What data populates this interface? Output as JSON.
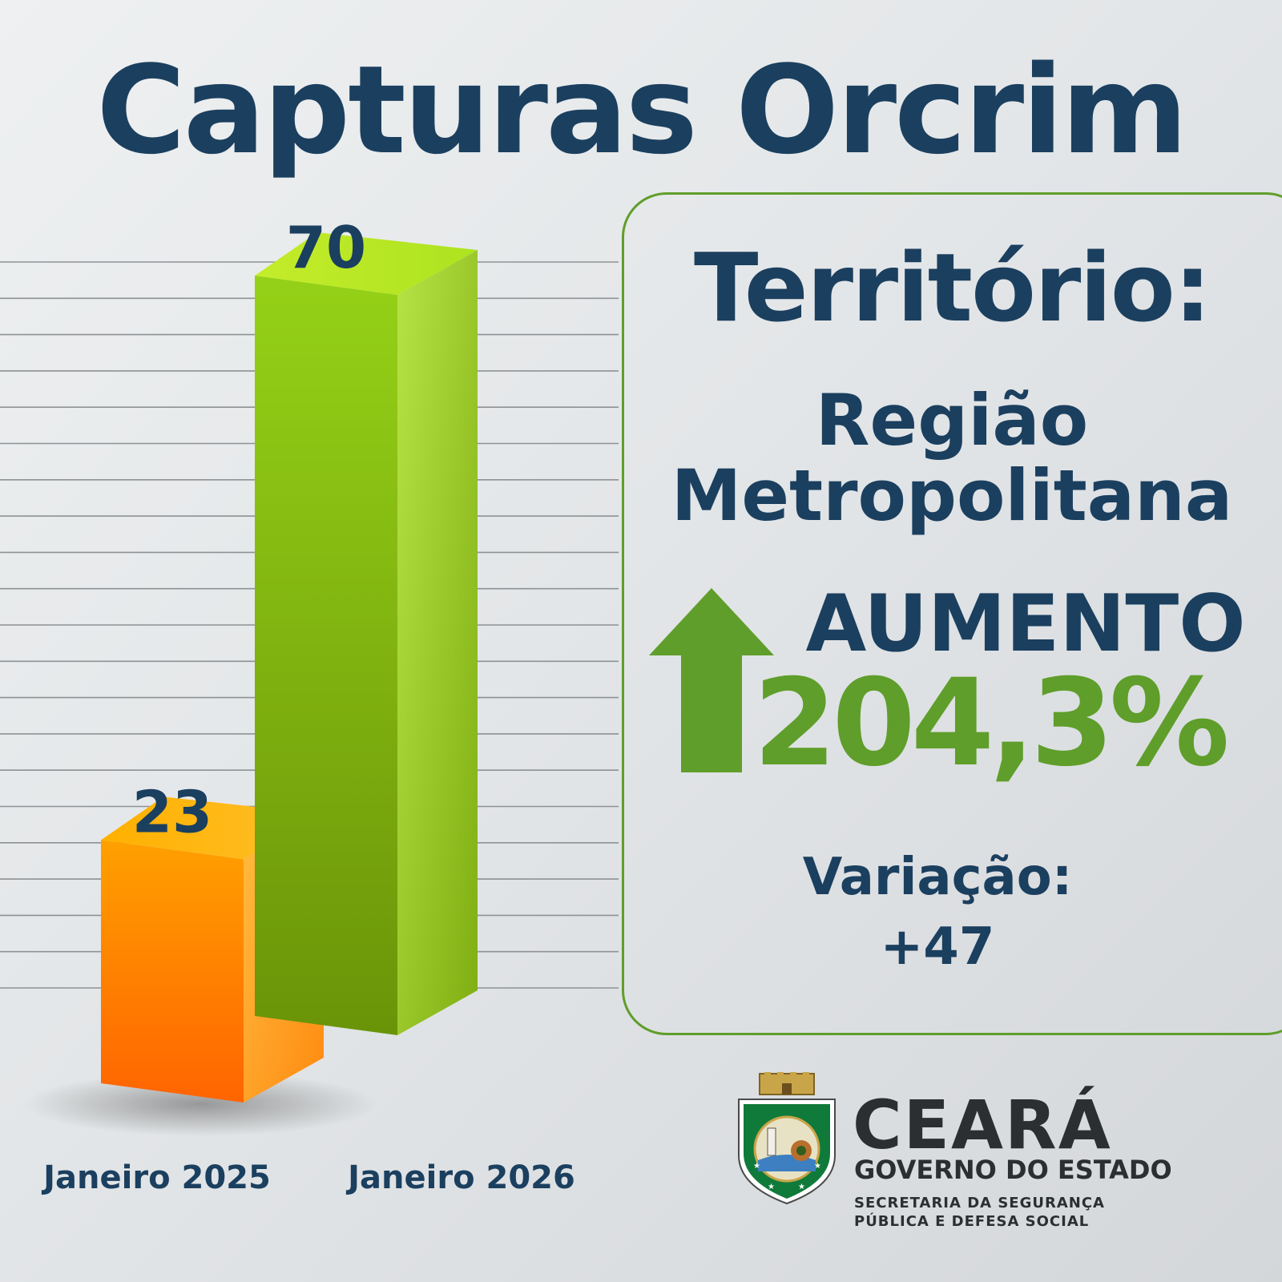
{
  "chart_data": {
    "type": "bar",
    "title": "Capturas Orcrim",
    "categories": [
      "Janeiro 2025",
      "Janeiro 2026"
    ],
    "values": [
      23,
      70
    ],
    "ylim": [
      0,
      80
    ],
    "grid": true
  },
  "colors": {
    "navy": "#1b3f5f",
    "green": "#5f9e2a",
    "orange": "#ff8a00",
    "lime": "#9acd12"
  },
  "panel": {
    "heading": "Território:",
    "region_line1": "Região",
    "region_line2": "Metropolitana",
    "trend_label": "AUMENTO",
    "trend_value": "204,3%",
    "trend_icon": "arrow-up-icon",
    "variation_label": "Variação:",
    "variation_value": "+47"
  },
  "brand": {
    "name": "CEARÁ",
    "subtitle": "GOVERNO DO ESTADO",
    "department_line1": "SECRETARIA DA SEGURANÇA",
    "department_line2": "PÚBLICA E DEFESA SOCIAL",
    "emblem_icon": "ceara-coat-of-arms-icon"
  }
}
